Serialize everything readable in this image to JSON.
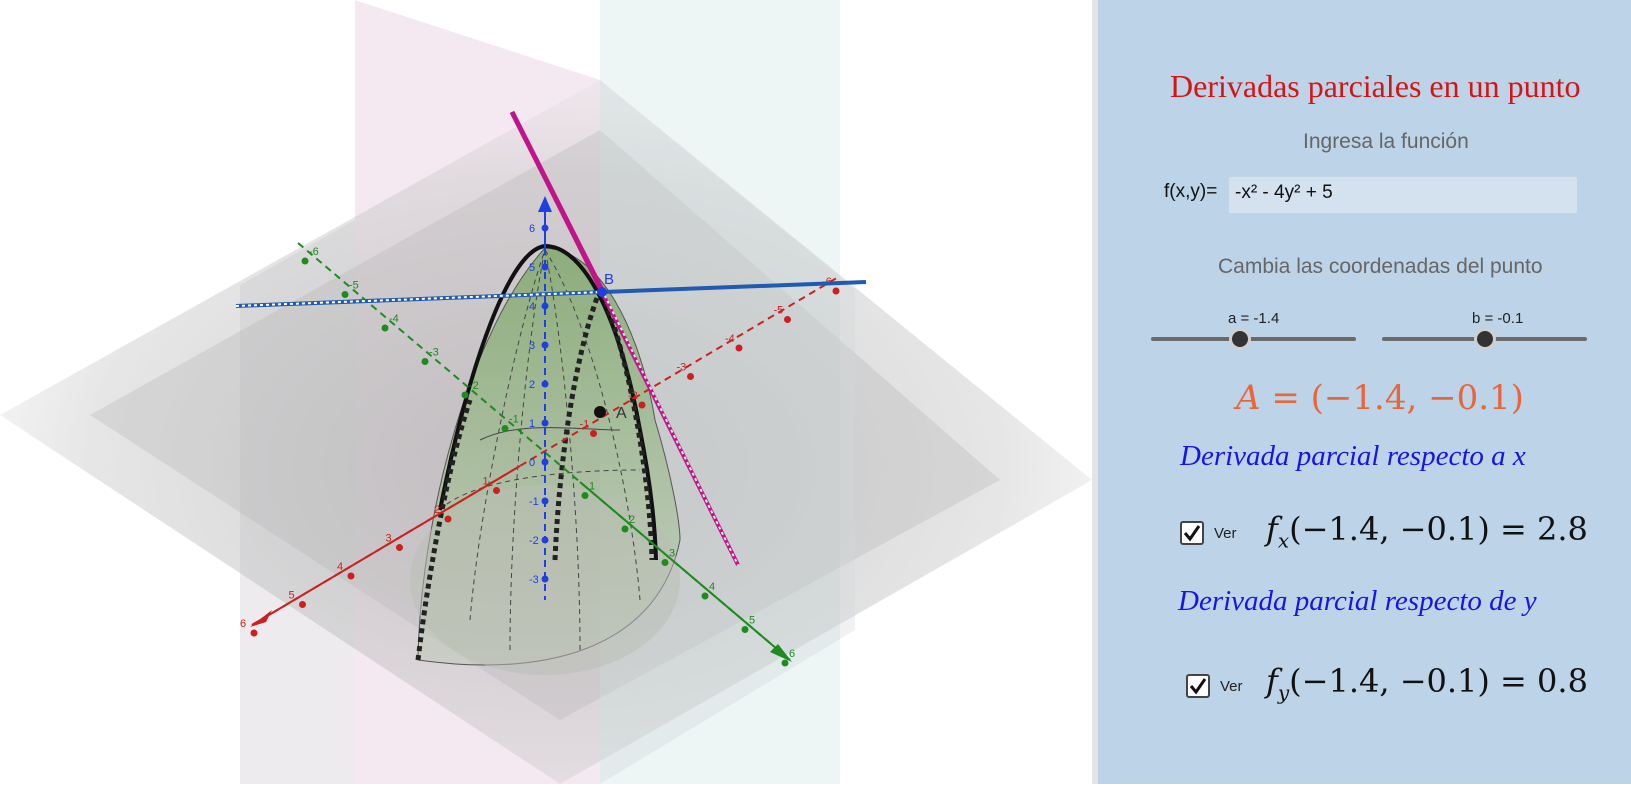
{
  "view3d": {
    "point_B_label": "B",
    "point_A_label": "A",
    "axis_x_ticks": [
      "-6",
      "-5",
      "-4",
      "-3",
      "-2",
      "-1",
      "1",
      "2",
      "3",
      "4",
      "5",
      "6"
    ],
    "axis_y_ticks": [
      "-6",
      "-5",
      "-4",
      "-3",
      "-2",
      "-1",
      "1",
      "2",
      "3",
      "4",
      "5",
      "6"
    ],
    "axis_z_ticks": [
      "-3",
      "-2",
      "-1",
      "0",
      "1",
      "2",
      "3",
      "4",
      "5",
      "6"
    ],
    "colors": {
      "x_axis": "#cc1f1f",
      "y_axis": "#1f8a1f",
      "z_axis": "#1f3fe0",
      "tangent_x": "#c0158a",
      "tangent_y": "#1f5bb0",
      "surface": "#8fb37f"
    }
  },
  "panel": {
    "title": "Derivadas parciales en un punto",
    "function_prompt": "Ingresa la función",
    "function_label": "f(x,y)=",
    "function_value": "-x² - 4y² + 5",
    "coords_prompt": "Cambia las coordenadas del punto",
    "slider_a": {
      "label": "a = -1.4",
      "value": -1.4,
      "min": -4,
      "max": 4
    },
    "slider_b": {
      "label": "b = -0.1",
      "value": -0.1,
      "min": -4,
      "max": 4
    },
    "point_A": {
      "name": "A",
      "eq": " = ",
      "text": "(−1.4, −0.1)"
    },
    "deriv_x_label": "Derivada parcial respecto a x",
    "deriv_x": {
      "check_label": "Ver",
      "f": "f",
      "sub": "x",
      "args": "(−1.4, −0.1) = 2.8"
    },
    "deriv_y_label": "Derivada parcial respecto de y",
    "deriv_y": {
      "check_label": "Ver",
      "f": "f",
      "sub": "y",
      "args": "(−1.4, −0.1) = 0.8"
    },
    "accent_colors": {
      "title": "#d41515",
      "point": "#e8663a",
      "derivative_labels": "#1515e6"
    }
  }
}
